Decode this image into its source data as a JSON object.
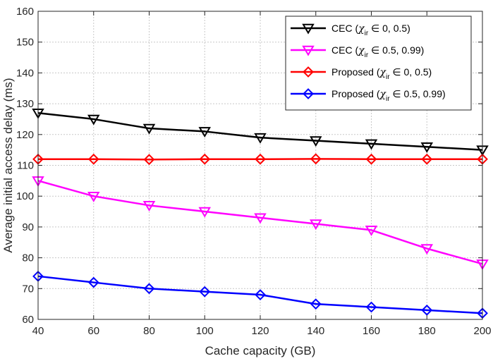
{
  "chart_data": {
    "type": "line",
    "title": "",
    "xlabel": "Cache capacity (GB)",
    "ylabel": "Average initial access delay (ms)",
    "x": [
      40,
      60,
      80,
      100,
      120,
      140,
      160,
      180,
      200
    ],
    "xlim": [
      40,
      200
    ],
    "ylim": [
      60,
      160
    ],
    "xticks": [
      "40",
      "60",
      "80",
      "100",
      "120",
      "140",
      "160",
      "180",
      "200"
    ],
    "yticks": [
      "60",
      "70",
      "80",
      "90",
      "100",
      "110",
      "120",
      "130",
      "140",
      "150",
      "160"
    ],
    "grid": true,
    "legend_position": "top-right",
    "series": [
      {
        "name": "CEC",
        "range": "0, 0.5",
        "color": "#000000",
        "marker": "triangle-down",
        "values": [
          127,
          125,
          122,
          121,
          119,
          118,
          117,
          116,
          115
        ]
      },
      {
        "name": "CEC",
        "range": "0.5, 0.99",
        "color": "#ff00ff",
        "marker": "triangle-down",
        "values": [
          105,
          100,
          97,
          95,
          93,
          91,
          89,
          83,
          78
        ]
      },
      {
        "name": "Proposed",
        "range": "0, 0.5",
        "color": "#ff0000",
        "marker": "diamond",
        "values": [
          112,
          112,
          111.9,
          112,
          112,
          112.1,
          112,
          112,
          112
        ]
      },
      {
        "name": "Proposed",
        "range": "0.5, 0.99",
        "color": "#0000ff",
        "marker": "diamond",
        "values": [
          74,
          72,
          70,
          69,
          68,
          65,
          64,
          63,
          62
        ]
      }
    ],
    "legend_symbol": "χ",
    "legend_subscript": "ir",
    "legend_operator": "∈"
  }
}
